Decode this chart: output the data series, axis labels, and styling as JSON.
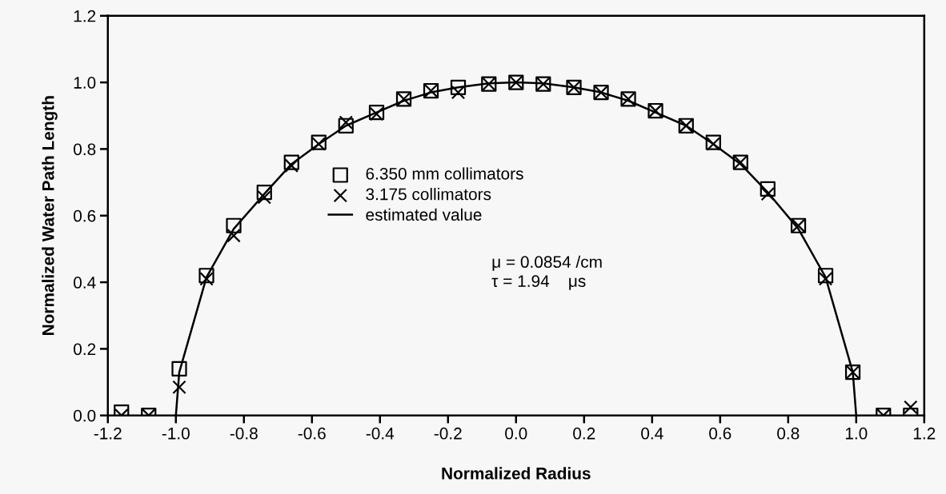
{
  "chart_data": {
    "type": "scatter",
    "xlabel": "Normalized Radius",
    "ylabel": "Normalized Water Path Length",
    "xlim": [
      -1.2,
      1.2
    ],
    "ylim": [
      0,
      1.2
    ],
    "xticks": [
      {
        "value": -1.2,
        "label": "-1.2"
      },
      {
        "value": -1.0,
        "label": "-1.0"
      },
      {
        "value": -0.8,
        "label": "-0.8"
      },
      {
        "value": -0.6,
        "label": "-0.6"
      },
      {
        "value": -0.4,
        "label": "-0.4"
      },
      {
        "value": -0.2,
        "label": "-0.2"
      },
      {
        "value": 0,
        "label": "0.0"
      },
      {
        "value": 0.2,
        "label": "0.2"
      },
      {
        "value": 0.4,
        "label": "0.4"
      },
      {
        "value": 0.6,
        "label": "0.6"
      },
      {
        "value": 0.8,
        "label": "0.8"
      },
      {
        "value": 1.0,
        "label": "1.0"
      },
      {
        "value": 1.2,
        "label": "1.2"
      }
    ],
    "yticks": [
      {
        "value": 0,
        "label": "0.0"
      },
      {
        "value": 0.2,
        "label": "0.2"
      },
      {
        "value": 0.4,
        "label": "0.4"
      },
      {
        "value": 0.6,
        "label": "0.6"
      },
      {
        "value": 0.8,
        "label": "0.8"
      },
      {
        "value": 1.0,
        "label": "1.0"
      },
      {
        "value": 1.2,
        "label": "1.2"
      }
    ],
    "x": [
      -1.16,
      -1.08,
      -0.99,
      -0.91,
      -0.83,
      -0.74,
      -0.66,
      -0.58,
      -0.5,
      -0.41,
      -0.33,
      -0.25,
      -0.17,
      -0.08,
      0,
      0.08,
      0.17,
      0.25,
      0.33,
      0.41,
      0.5,
      0.58,
      0.66,
      0.74,
      0.83,
      0.91,
      0.99,
      1.08,
      1.16
    ],
    "series": [
      {
        "name": "6.350 mm collimators",
        "color": "#000000",
        "marker": "square",
        "values": [
          0.01,
          0.0,
          0.14,
          0.42,
          0.57,
          0.67,
          0.76,
          0.82,
          0.87,
          0.91,
          0.95,
          0.975,
          0.985,
          0.995,
          1.0,
          0.995,
          0.985,
          0.97,
          0.95,
          0.915,
          0.87,
          0.82,
          0.76,
          0.68,
          0.57,
          0.42,
          0.13,
          0.0,
          0.0
        ]
      },
      {
        "name": "3.175 collimators",
        "color": "#000000",
        "marker": "cross",
        "values": [
          0.0,
          0.0,
          0.085,
          0.41,
          0.54,
          0.655,
          0.75,
          0.815,
          0.88,
          0.905,
          0.95,
          0.975,
          0.97,
          0.995,
          1.0,
          0.995,
          0.985,
          0.97,
          0.95,
          0.915,
          0.87,
          0.815,
          0.76,
          0.665,
          0.57,
          0.41,
          0.13,
          0.0,
          0.025
        ]
      },
      {
        "name": "estimated value",
        "type": "line",
        "color": "#000000",
        "marker": "none",
        "line_style": "solid",
        "x": [
          -1.0,
          -0.99,
          -0.91,
          -0.83,
          -0.74,
          -0.66,
          -0.58,
          -0.5,
          -0.41,
          -0.33,
          -0.25,
          -0.17,
          -0.08,
          0,
          0.08,
          0.17,
          0.25,
          0.33,
          0.41,
          0.5,
          0.58,
          0.66,
          0.74,
          0.83,
          0.91,
          0.99,
          1.0
        ],
        "values": [
          0.0,
          0.13,
          0.415,
          0.56,
          0.665,
          0.755,
          0.815,
          0.87,
          0.91,
          0.945,
          0.97,
          0.985,
          0.997,
          1.0,
          0.997,
          0.985,
          0.97,
          0.945,
          0.91,
          0.87,
          0.815,
          0.755,
          0.67,
          0.56,
          0.415,
          0.13,
          0.0
        ]
      }
    ],
    "legend": "center",
    "grid": false,
    "annotations": [
      "μ = 0.0854 /cm\nτ = 1.94    μs"
    ]
  }
}
